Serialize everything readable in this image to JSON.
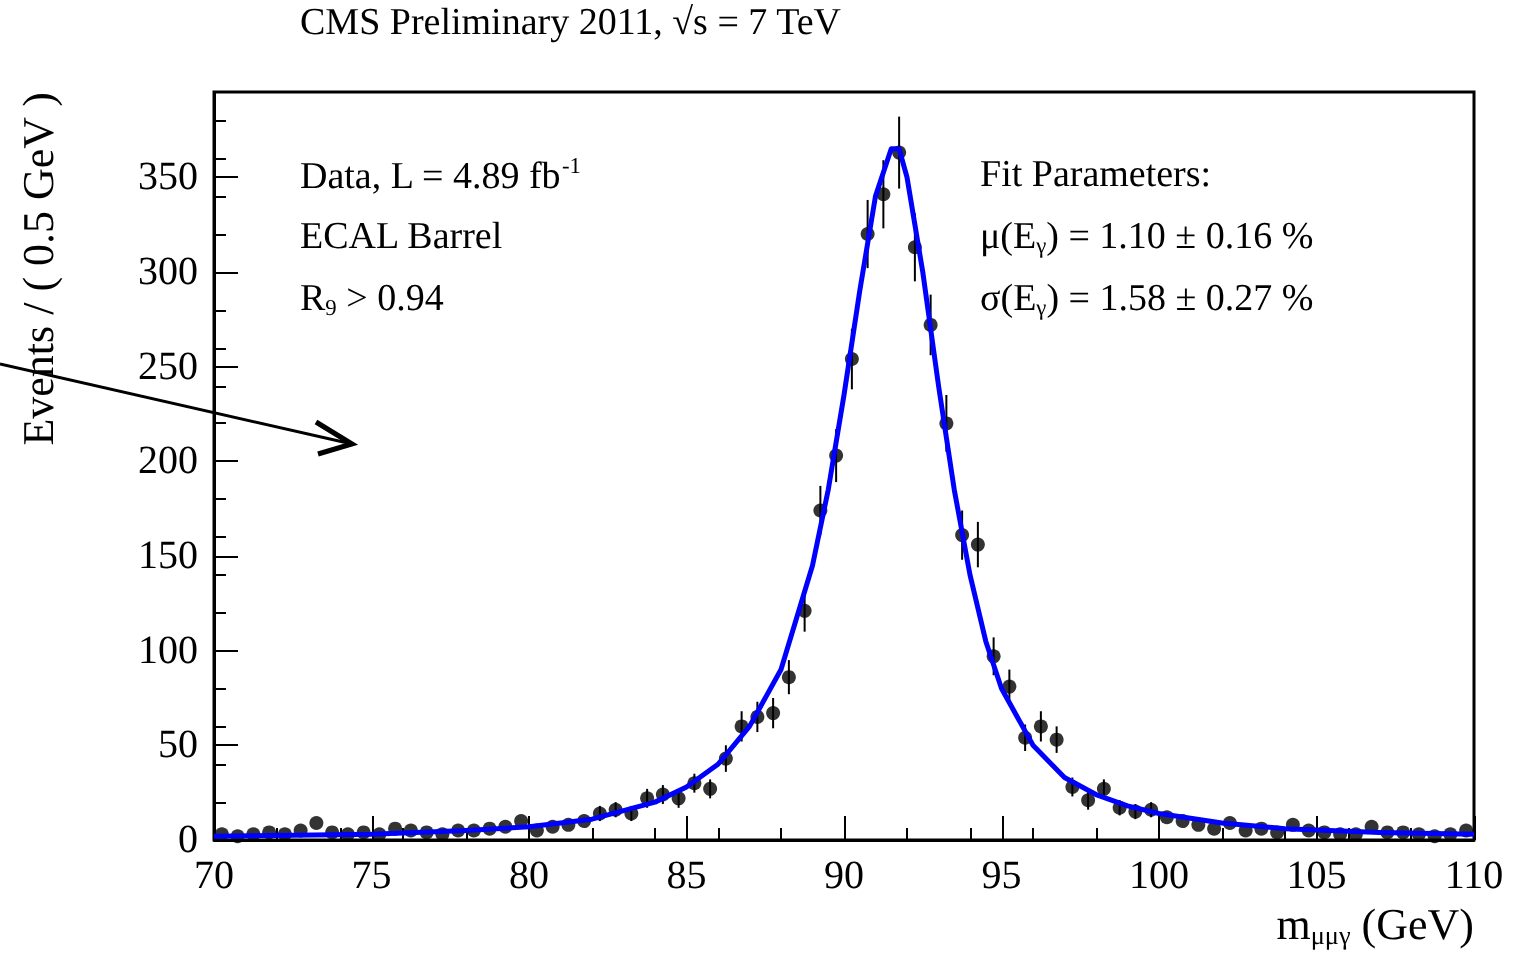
{
  "chart_data": {
    "type": "scatter",
    "title": "CMS Preliminary 2011, √s = 7 TeV",
    "xlabel": "m$_{μμγ}$ (GeV)",
    "ylabel": "Events / ( 0.5 GeV )",
    "annotations": [
      "Data, L = 4.89 fb$^{-1}$",
      "ECAL Barrel",
      "R$_{9}$ > 0.94",
      "Fit Parameters:",
      "μ(E$_{γ}$) = 1.10 ± 0.16 %",
      "σ(E$_{γ}$) = 1.58 ± 0.27 %"
    ],
    "xlim": [
      70,
      110
    ],
    "xticks": [
      70,
      75,
      80,
      85,
      90,
      95,
      100,
      105,
      110
    ],
    "ylim": [
      0,
      395
    ],
    "yticks": [
      0,
      50,
      100,
      150,
      200,
      250,
      300,
      350
    ],
    "grid": false,
    "marker": "circle",
    "series": [
      {
        "color": "#000000",
        "x": [
          70.25,
          70.75,
          71.25,
          71.75,
          72.25,
          72.75,
          73.25,
          73.75,
          74.25,
          74.75,
          75.25,
          75.75,
          76.25,
          76.75,
          77.25,
          77.75,
          78.25,
          78.75,
          79.25,
          79.75,
          80.25,
          80.75,
          81.25,
          81.75,
          82.25,
          82.75,
          83.25,
          83.75,
          84.25,
          84.75,
          85.25,
          85.75,
          86.25,
          86.75,
          87.25,
          87.75,
          88.25,
          88.75,
          89.25,
          89.75,
          90.25,
          90.75,
          91.25,
          91.75,
          92.25,
          92.75,
          93.25,
          93.75,
          94.25,
          94.75,
          95.25,
          95.75,
          96.25,
          96.75,
          97.25,
          97.75,
          98.25,
          98.75,
          99.25,
          99.75,
          100.25,
          100.75,
          101.25,
          101.75,
          102.25,
          102.75,
          103.25,
          103.75,
          104.25,
          104.75,
          105.25,
          105.75,
          106.25,
          106.75,
          107.25,
          107.75,
          108.25,
          108.75,
          109.25,
          109.75
        ],
        "values": [
          3,
          2,
          3,
          4,
          3,
          5,
          9,
          4,
          3,
          4,
          3,
          6,
          5,
          4,
          3,
          5,
          5,
          6,
          7,
          10,
          5,
          7,
          8,
          10,
          14,
          16,
          14,
          22,
          24,
          22,
          30,
          27,
          43,
          60,
          65,
          67,
          86,
          121,
          174,
          203,
          254,
          320,
          341,
          363,
          313,
          272,
          220,
          161,
          156,
          97,
          81,
          54,
          60,
          53,
          28,
          21,
          27,
          17,
          15,
          16,
          12,
          10,
          8,
          6,
          9,
          5,
          6,
          4,
          8,
          5,
          4,
          3,
          3,
          7,
          4,
          4,
          3,
          2,
          3,
          5
        ],
        "errors": [
          null,
          null,
          null,
          null,
          null,
          null,
          null,
          null,
          null,
          null,
          null,
          null,
          null,
          null,
          null,
          null,
          null,
          null,
          null,
          null,
          null,
          null,
          null,
          null,
          4,
          4,
          4,
          5,
          5,
          5,
          5,
          5,
          7,
          8,
          8,
          8,
          9,
          11,
          13,
          14,
          16,
          18,
          18,
          19,
          18,
          16,
          15,
          13,
          12,
          10,
          9,
          7,
          8,
          7,
          5,
          5,
          5,
          4,
          4,
          4,
          null,
          null,
          null,
          null,
          null,
          null,
          null,
          null,
          null,
          null,
          null,
          null,
          null,
          null,
          null,
          null,
          null,
          null,
          null,
          null
        ]
      },
      {
        "type": "line",
        "color": "#0000ff",
        "marker": "none",
        "x": [
          70,
          75,
          78,
          80,
          82,
          84,
          85,
          86,
          87,
          88,
          89,
          89.5,
          90,
          90.5,
          91,
          91.5,
          91.75,
          92,
          92.5,
          93,
          93.5,
          94,
          94.5,
          95,
          96,
          97,
          98,
          99,
          100,
          102,
          104,
          107,
          110
        ],
        "values": [
          2,
          3,
          5,
          7,
          11,
          20,
          28,
          40,
          60,
          90,
          145,
          185,
          235,
          290,
          340,
          365,
          365,
          350,
          300,
          240,
          185,
          140,
          105,
          80,
          50,
          33,
          24,
          18,
          14,
          9,
          6,
          4,
          3
        ]
      }
    ]
  }
}
